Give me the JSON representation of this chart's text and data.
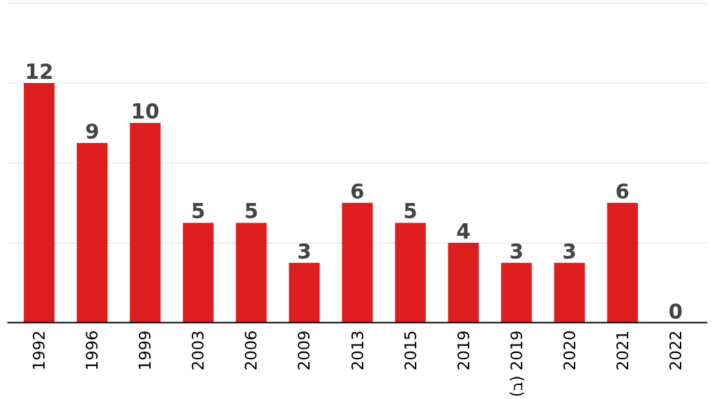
{
  "chart_data": {
    "type": "bar",
    "categories": [
      "1992",
      "1996",
      "1999",
      "2003",
      "2006",
      "2009",
      "2013",
      "2015",
      "2019",
      "(ב) 2019",
      "2020",
      "2021",
      "2022"
    ],
    "values": [
      12,
      9,
      10,
      5,
      5,
      3,
      6,
      5,
      4,
      3,
      3,
      6,
      0
    ],
    "color": "#dc1e1e",
    "ylim": [
      0,
      16
    ],
    "yticks": [
      {
        "value": 0,
        "label": null
      },
      {
        "value": 4,
        "label": null
      },
      {
        "value": 8,
        "label": null
      },
      {
        "value": 12,
        "label": null
      },
      {
        "value": 16,
        "label": null
      }
    ],
    "grid": "y",
    "data_labels": true,
    "tick_labels": "x"
  }
}
